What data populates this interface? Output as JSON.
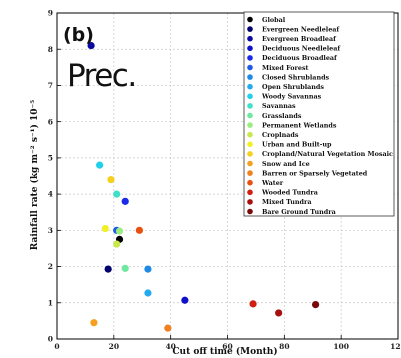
{
  "chart_data": {
    "type": "scatter",
    "panel_label": "(b)",
    "annotation": "Prec.",
    "xlabel": "Cut off time (Month)",
    "ylabel": "Rainfall rate (kg m⁻² s⁻¹) 10⁻⁵",
    "xlim": [
      0,
      120
    ],
    "ylim": [
      0,
      9
    ],
    "xticks": [
      0,
      20,
      40,
      60,
      80,
      100,
      120
    ],
    "yticks": [
      0,
      1,
      2,
      3,
      4,
      5,
      6,
      7,
      8,
      9
    ],
    "grid": true,
    "legend_position": "top-right",
    "series": [
      {
        "name": "Global",
        "color": "#000000",
        "x": 22,
        "y": 2.75
      },
      {
        "name": "Evergreen Needleleaf",
        "color": "#00006e",
        "x": 18,
        "y": 1.93
      },
      {
        "name": "Evergreen Broadleaf",
        "color": "#0a0aa0",
        "x": 12,
        "y": 8.1
      },
      {
        "name": "Deciduous Needleleaf",
        "color": "#1010c8",
        "x": 45,
        "y": 1.07
      },
      {
        "name": "Deciduous Broadleaf",
        "color": "#1a2ae8",
        "x": 24,
        "y": 3.8
      },
      {
        "name": "Mixed Forest",
        "color": "#1e5ae8",
        "x": 21,
        "y": 3.0
      },
      {
        "name": "Closed Shrublands",
        "color": "#1e8ae8",
        "x": 32,
        "y": 1.93
      },
      {
        "name": "Open Shrublands",
        "color": "#22aaf0",
        "x": 32,
        "y": 1.27
      },
      {
        "name": "Woody Savannas",
        "color": "#20d0e8",
        "x": 15,
        "y": 4.8
      },
      {
        "name": "Savannas",
        "color": "#40e0c8",
        "x": 21,
        "y": 4.0
      },
      {
        "name": "Grasslands",
        "color": "#6ee8a0",
        "x": 24,
        "y": 1.95
      },
      {
        "name": "Permanent Wetlands",
        "color": "#9cec80",
        "x": 22,
        "y": 2.98
      },
      {
        "name": "Croplnads",
        "color": "#c8e850",
        "x": 21,
        "y": 2.62
      },
      {
        "name": "Urban and Built-up",
        "color": "#f0f028",
        "x": 17,
        "y": 3.05
      },
      {
        "name": "Cropland/Natural Vegetation Mosaic",
        "color": "#f5d020",
        "x": 19,
        "y": 4.4
      },
      {
        "name": "Snow and Ice",
        "color": "#f5a020",
        "x": 13,
        "y": 0.45
      },
      {
        "name": "Barren or Sparsely Vegetated",
        "color": "#f08020",
        "x": 39,
        "y": 0.3
      },
      {
        "name": "Water",
        "color": "#e85010",
        "x": 29,
        "y": 3.0
      },
      {
        "name": "Wooded Tundra",
        "color": "#d01e10",
        "x": 69,
        "y": 0.97
      },
      {
        "name": "Mixed Tundra",
        "color": "#a81010",
        "x": 78,
        "y": 0.72
      },
      {
        "name": "Bare Ground Tundra",
        "color": "#7a0808",
        "x": 91,
        "y": 0.95
      }
    ]
  }
}
